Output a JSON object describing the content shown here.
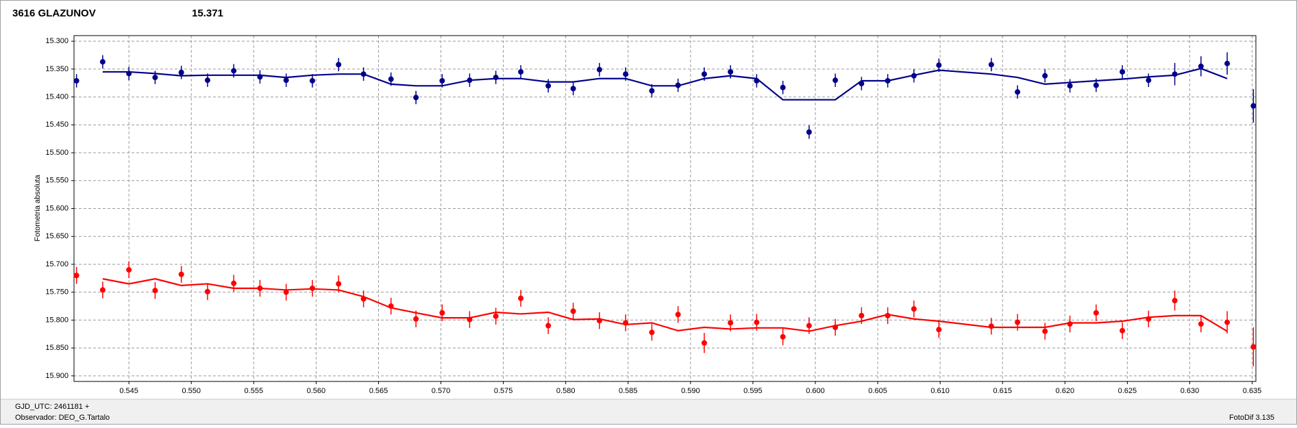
{
  "chart_data": {
    "type": "scatter",
    "title": "3616 GLAZUNOV",
    "title_color": "#ff0000",
    "header_value": "15.371",
    "header_value_color": "#00008b",
    "ylabel": "Fotometria absoluta",
    "xlim": [
      0.5406,
      0.6353
    ],
    "ylim": [
      15.29,
      15.91
    ],
    "y_inverted": true,
    "grid": true,
    "xticks": [
      0.545,
      {
        "value": 0.55,
        "label": "0.550"
      },
      0.555,
      {
        "value": 0.56,
        "label": "0.560"
      },
      0.565,
      {
        "value": 0.57,
        "label": "0.570"
      },
      0.575,
      {
        "value": 0.58,
        "label": "0.580"
      },
      0.585,
      {
        "value": 0.59,
        "label": "0.590"
      },
      0.595,
      {
        "value": 0.6,
        "label": "0.600"
      },
      0.605,
      {
        "value": 0.61,
        "label": "0.610"
      },
      0.615,
      {
        "value": 0.62,
        "label": "0.620"
      },
      0.625,
      {
        "value": 0.63,
        "label": "0.630"
      },
      0.635
    ],
    "yticks": [
      {
        "value": 15.3,
        "label": "15.300"
      },
      {
        "value": 15.35,
        "label": "15.350"
      },
      {
        "value": 15.4,
        "label": "15.400"
      },
      {
        "value": 15.45,
        "label": "15.450"
      },
      {
        "value": 15.5,
        "label": "15.500"
      },
      {
        "value": 15.55,
        "label": "15.550"
      },
      {
        "value": 15.6,
        "label": "15.600"
      },
      {
        "value": 15.65,
        "label": "15.650"
      },
      {
        "value": 15.7,
        "label": "15.700"
      },
      {
        "value": 15.75,
        "label": "15.750"
      },
      {
        "value": 15.8,
        "label": "15.800"
      },
      {
        "value": 15.85,
        "label": "15.850"
      },
      {
        "value": 15.9,
        "label": "15.900"
      }
    ],
    "x": [
      0.5408,
      0.5429,
      0.545,
      0.5471,
      0.5492,
      0.5513,
      0.5534,
      0.5555,
      0.5576,
      0.5597,
      0.5618,
      0.5638,
      0.566,
      0.568,
      0.5701,
      0.5723,
      0.5744,
      0.5764,
      0.5786,
      0.5806,
      0.5827,
      0.5848,
      0.5869,
      0.589,
      0.5911,
      0.5932,
      0.5953,
      0.5974,
      0.5995,
      0.6016,
      0.6037,
      0.6058,
      0.6079,
      0.6099,
      0.6141,
      0.6162,
      0.6184,
      0.6204,
      0.6225,
      0.6246,
      0.6267,
      0.6288,
      0.6309,
      0.633,
      0.6351
    ],
    "series": [
      {
        "type": "scatter",
        "color": "#00008b",
        "values": [
          15.371,
          15.337,
          15.358,
          15.365,
          15.356,
          15.37,
          15.353,
          15.364,
          15.37,
          15.371,
          15.342,
          15.359,
          15.368,
          15.401,
          15.371,
          15.37,
          15.365,
          15.355,
          15.38,
          15.385,
          15.351,
          15.359,
          15.389,
          15.379,
          15.359,
          15.355,
          15.371,
          15.383,
          15.463,
          15.37,
          15.376,
          15.371,
          15.362,
          15.343,
          15.342,
          15.391,
          15.362,
          15.38,
          15.379,
          15.355,
          15.37,
          15.359,
          15.345,
          15.34,
          15.416
        ],
        "errors": [
          0.012,
          0.012,
          0.012,
          0.012,
          0.012,
          0.012,
          0.012,
          0.012,
          0.012,
          0.012,
          0.012,
          0.012,
          0.012,
          0.012,
          0.012,
          0.012,
          0.012,
          0.012,
          0.012,
          0.012,
          0.012,
          0.012,
          0.012,
          0.012,
          0.012,
          0.012,
          0.012,
          0.012,
          0.012,
          0.012,
          0.012,
          0.012,
          0.012,
          0.012,
          0.012,
          0.012,
          0.012,
          0.012,
          0.012,
          0.012,
          0.012,
          0.02,
          0.018,
          0.02,
          0.03
        ]
      },
      {
        "type": "line",
        "color": "#00008b",
        "values": [
          null,
          15.355,
          15.355,
          15.358,
          15.362,
          15.361,
          15.361,
          15.361,
          15.365,
          15.361,
          15.359,
          15.359,
          15.377,
          15.38,
          15.38,
          15.37,
          15.367,
          15.367,
          15.373,
          15.373,
          15.367,
          15.367,
          15.38,
          15.38,
          15.367,
          15.362,
          15.367,
          15.405,
          15.405,
          15.405,
          15.371,
          15.371,
          15.361,
          15.352,
          15.359,
          15.365,
          15.377,
          15.374,
          15.371,
          15.368,
          15.364,
          15.361,
          15.349,
          15.367,
          null
        ]
      },
      {
        "type": "scatter",
        "color": "#ff0000",
        "values": [
          15.72,
          15.746,
          15.71,
          15.747,
          15.718,
          15.749,
          15.734,
          15.743,
          15.75,
          15.743,
          15.735,
          15.762,
          15.775,
          15.798,
          15.787,
          15.799,
          15.793,
          15.761,
          15.81,
          15.784,
          15.801,
          15.805,
          15.822,
          15.79,
          15.841,
          15.805,
          15.804,
          15.83,
          15.81,
          15.813,
          15.792,
          15.792,
          15.78,
          15.817,
          15.811,
          15.804,
          15.82,
          15.807,
          15.787,
          15.819,
          15.798,
          15.765,
          15.807,
          15.804,
          15.848
        ],
        "errors": [
          0.015,
          0.015,
          0.015,
          0.015,
          0.015,
          0.015,
          0.015,
          0.015,
          0.015,
          0.015,
          0.015,
          0.015,
          0.015,
          0.015,
          0.015,
          0.015,
          0.015,
          0.015,
          0.015,
          0.015,
          0.015,
          0.015,
          0.015,
          0.015,
          0.018,
          0.015,
          0.015,
          0.015,
          0.015,
          0.015,
          0.015,
          0.015,
          0.015,
          0.015,
          0.015,
          0.015,
          0.015,
          0.015,
          0.015,
          0.015,
          0.015,
          0.018,
          0.015,
          0.02,
          0.035
        ]
      },
      {
        "type": "line",
        "color": "#ff0000",
        "values": [
          null,
          15.726,
          15.735,
          15.726,
          15.738,
          15.735,
          15.743,
          15.743,
          15.746,
          15.744,
          15.746,
          15.758,
          15.778,
          15.787,
          15.796,
          15.796,
          15.786,
          15.789,
          15.786,
          15.799,
          15.798,
          15.808,
          15.805,
          15.819,
          15.813,
          15.816,
          15.814,
          15.814,
          15.82,
          15.81,
          15.802,
          15.79,
          15.798,
          15.802,
          15.813,
          15.813,
          15.813,
          15.805,
          15.805,
          15.802,
          15.795,
          15.792,
          15.792,
          15.82,
          null
        ]
      }
    ],
    "footer": {
      "left_top": "GJD_UTC: 2461181 +",
      "left_bottom": "Observador: DEO_G.Tartalo",
      "right": "FotoDif 3.135"
    }
  }
}
